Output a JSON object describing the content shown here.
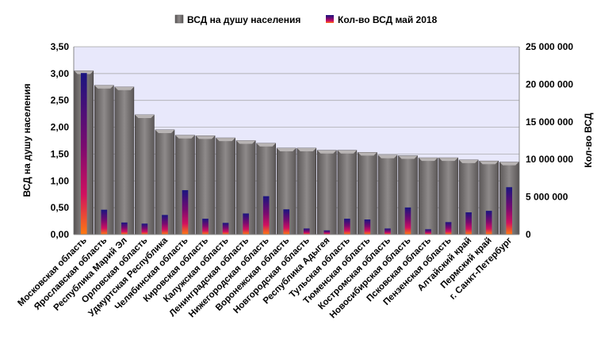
{
  "chart_data": {
    "type": "bar",
    "categories": [
      "Московская область",
      "Ярославская область",
      "Республика Марий Эл",
      "Орловская область",
      "Удмуртская Республика",
      "Челябинская область",
      "Кировская область",
      "Калужская область",
      "Ленинградская область",
      "Нижегородская область",
      "Воронежская область",
      "Новгородская область",
      "Республика Адыгея",
      "Тульская область",
      "Тюменская область",
      "Костромская область",
      "Новосибирская область",
      "Псковская область",
      "Пензенская область",
      "Алтайский край",
      "Пермский край",
      "г. Санкт-Петербург"
    ],
    "series": [
      {
        "name": "ВСД на душу населения",
        "axis": "left",
        "color": "#7a7676",
        "values": [
          3.05,
          2.78,
          2.75,
          2.23,
          1.95,
          1.85,
          1.84,
          1.8,
          1.75,
          1.7,
          1.61,
          1.61,
          1.57,
          1.57,
          1.53,
          1.48,
          1.47,
          1.43,
          1.43,
          1.39,
          1.37,
          1.35
        ]
      },
      {
        "name": "Кол-во ВСД май 2018",
        "axis": "right",
        "color": "#3a0a7a",
        "values": [
          21500000,
          3300000,
          1600000,
          1450000,
          2600000,
          5900000,
          2100000,
          1550000,
          2800000,
          5100000,
          3350000,
          800000,
          550000,
          2100000,
          2000000,
          800000,
          3600000,
          700000,
          1650000,
          2950000,
          3150000,
          6300000
        ]
      }
    ],
    "y_left": {
      "label": "ВСД на душу населения",
      "ylim": [
        0,
        3.5
      ],
      "ticks": [
        "0,00",
        "0,50",
        "1,00",
        "1,50",
        "2,00",
        "2,50",
        "3,00",
        "3,50"
      ]
    },
    "y_right": {
      "label": "Кол-во ВСД",
      "ylim": [
        0,
        25000000
      ],
      "ticks": [
        "0",
        "5 000 000",
        "10 000 000",
        "15 000 000",
        "20 000 000",
        "25 000 000"
      ]
    },
    "grid": true,
    "legend": "top-center",
    "plot_background": "#e8e8fb"
  }
}
